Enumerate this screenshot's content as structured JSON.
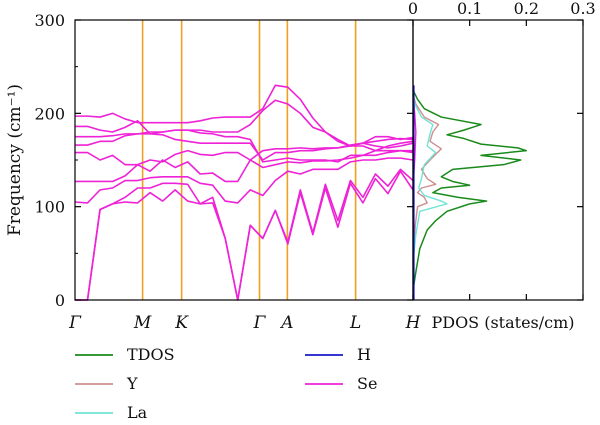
{
  "chart_data": [
    {
      "type": "line",
      "panel": "phonon-dispersion",
      "ylabel": "Frequency (cm⁻¹)",
      "ylim": [
        0,
        300
      ],
      "yticks": [
        0,
        100,
        200,
        300
      ],
      "high_symmetry_points": [
        {
          "label": "Γ",
          "pos": 0.0
        },
        {
          "label": "M",
          "pos": 0.2
        },
        {
          "label": "K",
          "pos": 0.3155
        },
        {
          "label": "Γ",
          "pos": 0.5459
        },
        {
          "label": "A",
          "pos": 0.6283
        },
        {
          "label": "L",
          "pos": 0.8302
        },
        {
          "label": "H",
          "pos": 1.0
        }
      ],
      "branch_segments": [
        [
          0,
          0.2
        ],
        [
          0.2,
          0.3155
        ],
        [
          0.3155,
          0.5459
        ],
        [
          0.5459,
          0.6283
        ],
        [
          0.6283,
          0.8302
        ],
        [
          0.8302,
          1.0
        ]
      ],
      "series": [
        {
          "name": "Se",
          "branch": 1,
          "values": [
            [
              0,
              0
            ],
            [
              97,
              103
            ],
            [
              105,
              104
            ],
            [
              115,
              106
            ],
            [
              118,
              106
            ],
            [
              103,
              104
            ],
            [
              66,
              0
            ],
            [
              80,
              66
            ],
            [
              96,
              60
            ],
            [
              115,
              70
            ],
            [
              120,
              78
            ],
            [
              125,
              104
            ],
            [
              130,
              114
            ],
            [
              138,
              118
            ]
          ]
        },
        {
          "name": "Se",
          "branch": 2,
          "values": [
            [
              0,
              0
            ],
            [
              97,
              103
            ],
            [
              110,
              120
            ],
            [
              120,
              125
            ],
            [
              125,
              124
            ],
            [
              103,
              110
            ],
            [
              66,
              0
            ],
            [
              80,
              66
            ],
            [
              96,
              62
            ],
            [
              118,
              72
            ],
            [
              124,
              85
            ],
            [
              128,
              110
            ],
            [
              135,
              122
            ],
            [
              140,
              128
            ]
          ]
        },
        {
          "name": "Se",
          "branch": 3,
          "values": [
            [
              105,
              104
            ],
            [
              118,
              120
            ],
            [
              128,
              128
            ],
            [
              131,
              132
            ],
            [
              132,
              132
            ],
            [
              125,
              123
            ],
            [
              106,
              104
            ],
            [
              118,
              112
            ],
            [
              128,
              138
            ],
            [
              135,
              140
            ],
            [
              140,
              140
            ],
            [
              148,
              150
            ],
            [
              150,
              152
            ],
            [
              152,
              150
            ]
          ]
        },
        {
          "name": "Se",
          "branch": 4,
          "values": [
            [
              127,
              127
            ],
            [
              127,
              127
            ],
            [
              133,
              145
            ],
            [
              138,
              150
            ],
            [
              142,
              148
            ],
            [
              135,
              136
            ],
            [
              127,
              127
            ],
            [
              150,
              142
            ],
            [
              145,
              148
            ],
            [
              147,
              149
            ],
            [
              149,
              150
            ],
            [
              152,
              155
            ],
            [
              155,
              158
            ],
            [
              160,
              158
            ]
          ]
        },
        {
          "name": "Se",
          "branch": 5,
          "values": [
            [
              158,
              158
            ],
            [
              150,
              155
            ],
            [
              145,
              145
            ],
            [
              150,
              148
            ],
            [
              156,
              160
            ],
            [
              156,
              155
            ],
            [
              158,
              158
            ],
            [
              150,
              160
            ],
            [
              162,
              162
            ],
            [
              163,
              162
            ],
            [
              163,
              163
            ],
            [
              166,
              168
            ],
            [
              170,
              172
            ],
            [
              173,
              172
            ]
          ]
        },
        {
          "name": "Se",
          "branch": 6,
          "values": [
            [
              166,
              166
            ],
            [
              170,
              170
            ],
            [
              176,
              178
            ],
            [
              178,
              177
            ],
            [
              172,
              170
            ],
            [
              168,
              168
            ],
            [
              168,
              168
            ],
            [
              168,
              150
            ],
            [
              158,
              158
            ],
            [
              160,
              160
            ],
            [
              162,
              163
            ],
            [
              165,
              168
            ],
            [
              165,
              163
            ],
            [
              165,
              168
            ]
          ]
        },
        {
          "name": "Se",
          "branch": 7,
          "values": [
            [
              175,
              175
            ],
            [
              175,
              176
            ],
            [
              178,
              178
            ],
            [
              180,
              180
            ],
            [
              182,
              182
            ],
            [
              179,
              178
            ],
            [
              175,
              175
            ],
            [
              172,
              148
            ],
            [
              150,
              152
            ],
            [
              150,
              150
            ],
            [
              150,
              148
            ],
            [
              155,
              155
            ],
            [
              160,
              165
            ],
            [
              168,
              170
            ]
          ]
        },
        {
          "name": "Se",
          "branch": 8,
          "values": [
            [
              186,
              186
            ],
            [
              182,
              180
            ],
            [
              185,
              192
            ],
            [
              178,
              180
            ],
            [
              182,
              182
            ],
            [
              182,
              180
            ],
            [
              180,
              180
            ],
            [
              188,
              203
            ],
            [
              214,
              210
            ],
            [
              200,
              185
            ],
            [
              180,
              172
            ],
            [
              165,
              165
            ],
            [
              160,
              160
            ],
            [
              160,
              160
            ]
          ]
        },
        {
          "name": "Se",
          "branch": 9,
          "values": [
            [
              197,
              197
            ],
            [
              196,
              200
            ],
            [
              194,
              190
            ],
            [
              190,
              190
            ],
            [
              190,
              190
            ],
            [
              192,
              195
            ],
            [
              196,
              196
            ],
            [
              196,
              205
            ],
            [
              230,
              228
            ],
            [
              215,
              195
            ],
            [
              180,
              170
            ],
            [
              165,
              168
            ],
            [
              175,
              175
            ],
            [
              172,
              174
            ]
          ]
        }
      ]
    },
    {
      "type": "line",
      "panel": "PDOS",
      "xlabel": "PDOS (states/cm)",
      "xlim": [
        0,
        0.3
      ],
      "xticks": [
        "0",
        "0.1",
        "0.2",
        "0.3"
      ],
      "ylim": [
        0,
        300
      ],
      "legend_position": "bottom",
      "series": [
        {
          "name": "TDOS",
          "points": [
            [
              0.0,
              10
            ],
            [
              0.005,
              30
            ],
            [
              0.012,
              55
            ],
            [
              0.025,
              75
            ],
            [
              0.04,
              85
            ],
            [
              0.06,
              95
            ],
            [
              0.1,
              103
            ],
            [
              0.13,
              106
            ],
            [
              0.08,
              110
            ],
            [
              0.035,
              115
            ],
            [
              0.05,
              120
            ],
            [
              0.1,
              123
            ],
            [
              0.07,
              127
            ],
            [
              0.05,
              132
            ],
            [
              0.07,
              140
            ],
            [
              0.16,
              145
            ],
            [
              0.19,
              150
            ],
            [
              0.12,
              155
            ],
            [
              0.2,
              160
            ],
            [
              0.185,
              163
            ],
            [
              0.12,
              167
            ],
            [
              0.09,
              173
            ],
            [
              0.06,
              177
            ],
            [
              0.09,
              182
            ],
            [
              0.12,
              188
            ],
            [
              0.05,
              196
            ],
            [
              0.02,
              205
            ],
            [
              0.008,
              215
            ],
            [
              0.0,
              225
            ]
          ]
        },
        {
          "name": "Y",
          "points": [
            [
              0.0,
              40
            ],
            [
              0.004,
              80
            ],
            [
              0.008,
              100
            ],
            [
              0.025,
              104
            ],
            [
              0.02,
              110
            ],
            [
              0.008,
              115
            ],
            [
              0.015,
              120
            ],
            [
              0.04,
              124
            ],
            [
              0.025,
              130
            ],
            [
              0.015,
              140
            ],
            [
              0.03,
              150
            ],
            [
              0.05,
              162
            ],
            [
              0.03,
              170
            ],
            [
              0.035,
              180
            ],
            [
              0.045,
              188
            ],
            [
              0.02,
              196
            ],
            [
              0.005,
              210
            ],
            [
              0.0,
              220
            ]
          ]
        },
        {
          "name": "La",
          "points": [
            [
              0.0,
              40
            ],
            [
              0.005,
              70
            ],
            [
              0.012,
              95
            ],
            [
              0.06,
              103
            ],
            [
              0.05,
              106
            ],
            [
              0.02,
              112
            ],
            [
              0.01,
              120
            ],
            [
              0.015,
              130
            ],
            [
              0.02,
              145
            ],
            [
              0.04,
              158
            ],
            [
              0.025,
              165
            ],
            [
              0.03,
              178
            ],
            [
              0.035,
              188
            ],
            [
              0.015,
              196
            ],
            [
              0.003,
              210
            ],
            [
              0.0,
              220
            ]
          ]
        },
        {
          "name": "H",
          "points": []
        },
        {
          "name": "Se",
          "points": [
            [
              0.0,
              120
            ],
            [
              0.003,
              150
            ],
            [
              0.005,
              180
            ],
            [
              0.003,
              200
            ],
            [
              0.0,
              220
            ]
          ]
        }
      ]
    }
  ],
  "colors": {
    "TDOS": "#1a8a1a",
    "Y": "#cc8f8f",
    "La": "#6fe3d6",
    "H": "#1a1acc",
    "Se": "#ee22d6",
    "high_symmetry_line": "#f0a020"
  },
  "legend": [
    {
      "key": "TDOS",
      "label": "TDOS"
    },
    {
      "key": "H",
      "label": "H"
    },
    {
      "key": "Y",
      "label": "Y"
    },
    {
      "key": "Se",
      "label": "Se"
    },
    {
      "key": "La",
      "label": "La"
    }
  ]
}
